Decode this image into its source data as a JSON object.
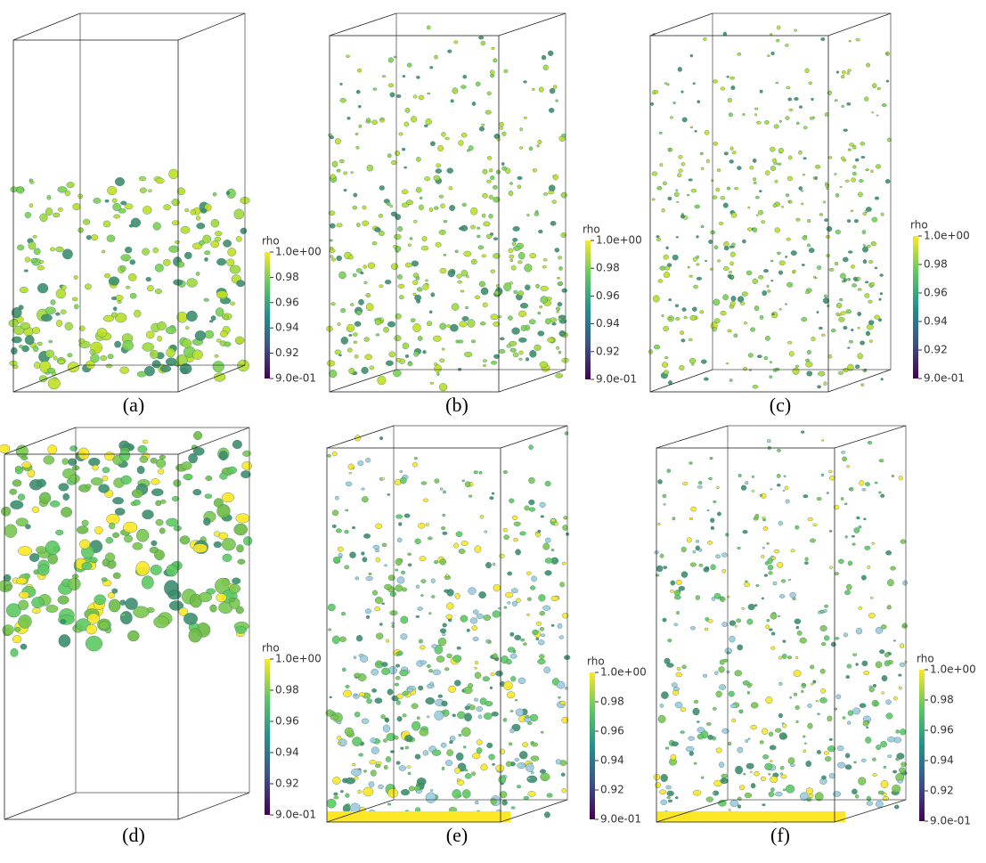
{
  "panels": [
    {
      "label": "(a)",
      "colorbar": {
        "title": "rho",
        "ticks": [
          {
            "value": 1.0,
            "label": "1.0e+00"
          },
          0.98,
          0.96,
          0.94,
          0.92,
          {
            "value": 0.9,
            "label": "9.0e-01"
          }
        ]
      }
    },
    {
      "label": "(b)",
      "colorbar": {
        "title": "rho",
        "ticks": [
          {
            "value": 1.0,
            "label": "1.0e+00"
          },
          0.98,
          0.96,
          0.94,
          0.92,
          {
            "value": 0.9,
            "label": "9.0e-01"
          }
        ]
      }
    },
    {
      "label": "(c)",
      "colorbar": {
        "title": "rho",
        "ticks": [
          {
            "value": 1.0,
            "label": "1.0e+00"
          },
          0.98,
          0.96,
          0.94,
          0.92,
          {
            "value": 0.9,
            "label": "9.0e-01"
          }
        ]
      }
    },
    {
      "label": "(d)",
      "colorbar": {
        "title": "rho",
        "ticks": [
          {
            "value": 1.0,
            "label": "1.0e+00"
          },
          0.98,
          0.96,
          0.94,
          0.92,
          {
            "value": 0.9,
            "label": "9.0e-01"
          }
        ]
      }
    },
    {
      "label": "(e)",
      "colorbar": {
        "title": "rho",
        "ticks": [
          {
            "value": 1.0,
            "label": "1.0e+00"
          },
          0.98,
          0.96,
          0.94,
          0.92,
          {
            "value": 0.9,
            "label": "9.0e-01"
          }
        ]
      }
    },
    {
      "label": "(f)",
      "colorbar": {
        "title": "rho",
        "ticks": [
          {
            "value": 1.0,
            "label": "1.0e+00"
          },
          0.98,
          0.96,
          0.94,
          0.92,
          {
            "value": 0.9,
            "label": "9.0e-01"
          }
        ]
      }
    }
  ]
}
